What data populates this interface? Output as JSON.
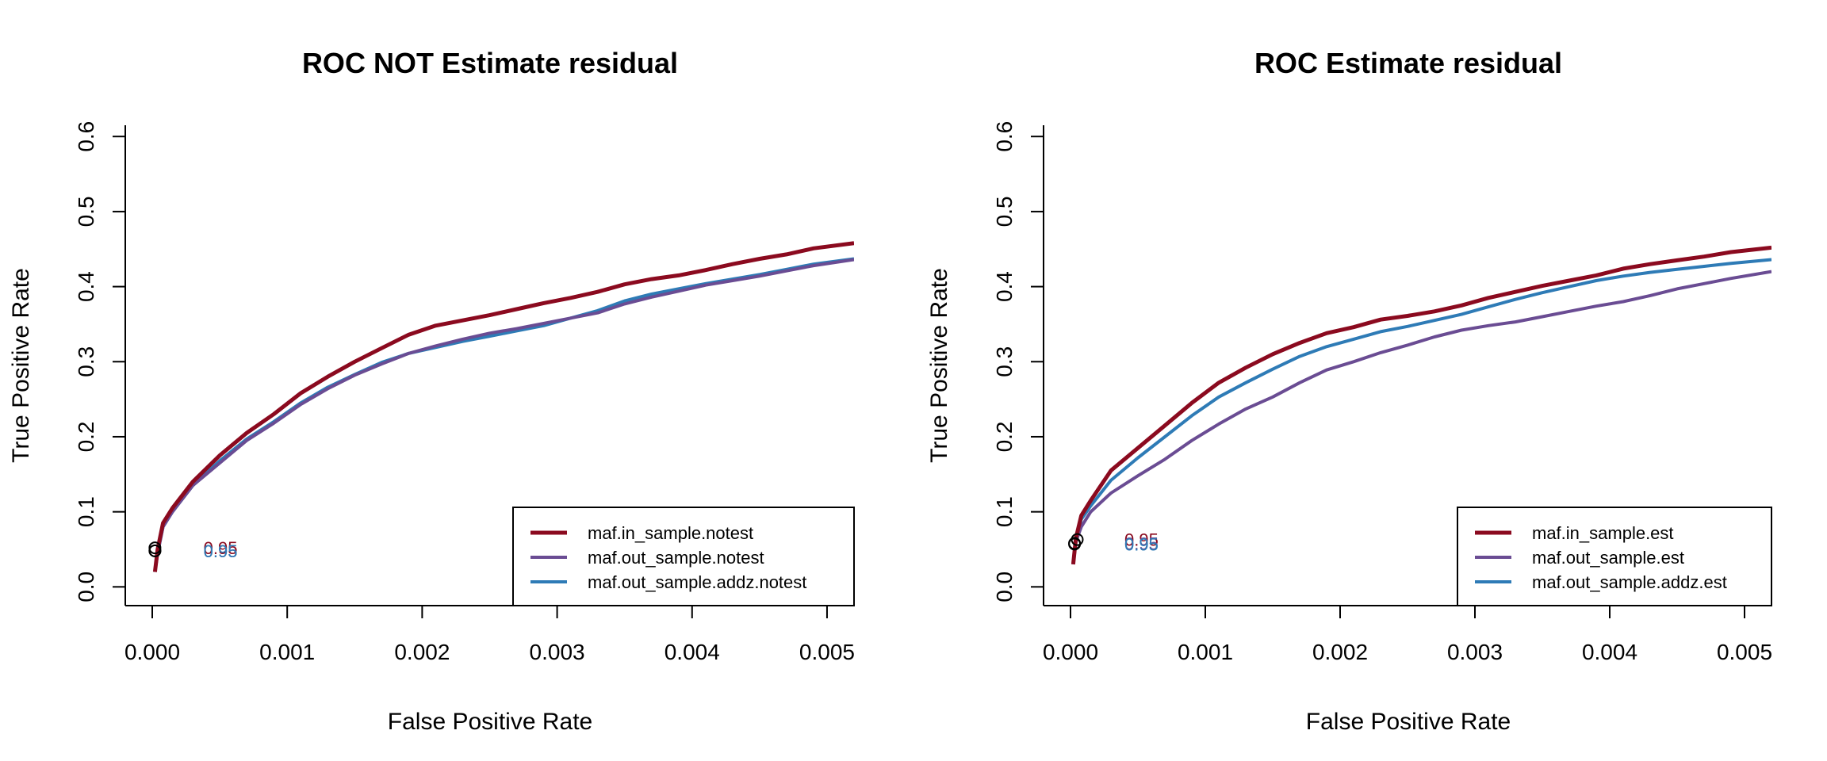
{
  "colors": {
    "in_sample": "#8B0A1F",
    "out_sample": "#6A4C93",
    "out_sample_addz": "#2E7BB6",
    "axis": "#000000",
    "marker": "#000000"
  },
  "chart_data": [
    {
      "type": "line",
      "title": "ROC NOT Estimate residual",
      "xlabel": "False Positive Rate",
      "ylabel": "True Positive Rate",
      "xlim": [
        0,
        0.0052
      ],
      "ylim": [
        -0.025,
        0.615
      ],
      "xticks": [
        0.0,
        0.001,
        0.002,
        0.003,
        0.004,
        0.005
      ],
      "xtick_labels": [
        "0.000",
        "0.001",
        "0.002",
        "0.003",
        "0.004",
        "0.005"
      ],
      "yticks": [
        0.0,
        0.1,
        0.2,
        0.3,
        0.4,
        0.5,
        0.6
      ],
      "ytick_labels": [
        "0.0",
        "0.1",
        "0.2",
        "0.3",
        "0.4",
        "0.5",
        "0.6"
      ],
      "legend_position": "bottom-right",
      "series": [
        {
          "name": "maf.in_sample.notest",
          "color_key": "in_sample",
          "width": 5,
          "x": [
            2e-05,
            4e-05,
            8e-05,
            0.00015,
            0.0003,
            0.0005,
            0.0007,
            0.0009,
            0.0011,
            0.0013,
            0.0015,
            0.0017,
            0.0019,
            0.0021,
            0.0023,
            0.0025,
            0.0027,
            0.0029,
            0.0031,
            0.0033,
            0.0035,
            0.0037,
            0.0039,
            0.0041,
            0.0043,
            0.0045,
            0.0047,
            0.0049,
            0.0052
          ],
          "y": [
            0.02,
            0.05,
            0.085,
            0.105,
            0.14,
            0.175,
            0.205,
            0.23,
            0.258,
            0.28,
            0.3,
            0.318,
            0.336,
            0.348,
            0.355,
            0.362,
            0.37,
            0.378,
            0.385,
            0.393,
            0.403,
            0.41,
            0.415,
            0.422,
            0.43,
            0.437,
            0.443,
            0.451,
            0.458
          ]
        },
        {
          "name": "maf.out_sample.notest",
          "color_key": "out_sample",
          "width": 4,
          "x": [
            2e-05,
            4e-05,
            8e-05,
            0.00015,
            0.0003,
            0.0005,
            0.0007,
            0.0009,
            0.0011,
            0.0013,
            0.0015,
            0.0017,
            0.0019,
            0.0021,
            0.0023,
            0.0025,
            0.0027,
            0.0029,
            0.0031,
            0.0033,
            0.0035,
            0.0037,
            0.0039,
            0.0041,
            0.0043,
            0.0045,
            0.0047,
            0.0049,
            0.0052
          ],
          "y": [
            0.02,
            0.045,
            0.08,
            0.1,
            0.135,
            0.165,
            0.195,
            0.218,
            0.243,
            0.264,
            0.282,
            0.297,
            0.311,
            0.321,
            0.33,
            0.338,
            0.344,
            0.351,
            0.358,
            0.365,
            0.377,
            0.386,
            0.394,
            0.402,
            0.408,
            0.414,
            0.421,
            0.428,
            0.436
          ]
        },
        {
          "name": "maf.out_sample.addz.notest",
          "color_key": "out_sample_addz",
          "width": 4,
          "x": [
            2e-05,
            4e-05,
            8e-05,
            0.00015,
            0.0003,
            0.0005,
            0.0007,
            0.0009,
            0.0011,
            0.0013,
            0.0015,
            0.0017,
            0.0019,
            0.0021,
            0.0023,
            0.0025,
            0.0027,
            0.0029,
            0.0031,
            0.0033,
            0.0035,
            0.0037,
            0.0039,
            0.0041,
            0.0043,
            0.0045,
            0.0047,
            0.0049,
            0.0052
          ],
          "y": [
            0.02,
            0.045,
            0.08,
            0.1,
            0.135,
            0.168,
            0.197,
            0.22,
            0.245,
            0.266,
            0.283,
            0.299,
            0.311,
            0.319,
            0.327,
            0.334,
            0.341,
            0.348,
            0.358,
            0.368,
            0.381,
            0.39,
            0.397,
            0.404,
            0.41,
            0.416,
            0.423,
            0.43,
            0.437
          ]
        }
      ],
      "cutoff_points": [
        {
          "x": 2e-05,
          "y": 0.052,
          "label": "0.95",
          "color_key": "in_sample"
        },
        {
          "x": 2e-05,
          "y": 0.048,
          "label": "0.95",
          "color_key": "out_sample"
        },
        {
          "x": 2e-05,
          "y": 0.048,
          "label": "0.95",
          "color_key": "out_sample_addz"
        }
      ],
      "cutoff_label_x": 0.00038
    },
    {
      "type": "line",
      "title": "ROC Estimate residual",
      "xlabel": "False Positive Rate",
      "ylabel": "True Positive Rate",
      "xlim": [
        0,
        0.0052
      ],
      "ylim": [
        -0.025,
        0.615
      ],
      "xticks": [
        0.0,
        0.001,
        0.002,
        0.003,
        0.004,
        0.005
      ],
      "xtick_labels": [
        "0.000",
        "0.001",
        "0.002",
        "0.003",
        "0.004",
        "0.005"
      ],
      "yticks": [
        0.0,
        0.1,
        0.2,
        0.3,
        0.4,
        0.5,
        0.6
      ],
      "ytick_labels": [
        "0.0",
        "0.1",
        "0.2",
        "0.3",
        "0.4",
        "0.5",
        "0.6"
      ],
      "legend_position": "bottom-right",
      "series": [
        {
          "name": "maf.in_sample.est",
          "color_key": "in_sample",
          "width": 5,
          "x": [
            2e-05,
            4e-05,
            8e-05,
            0.00015,
            0.0003,
            0.0005,
            0.0007,
            0.0009,
            0.0011,
            0.0013,
            0.0015,
            0.0017,
            0.0019,
            0.0021,
            0.0023,
            0.0025,
            0.0027,
            0.0029,
            0.0031,
            0.0033,
            0.0035,
            0.0037,
            0.0039,
            0.0041,
            0.0043,
            0.0045,
            0.0047,
            0.0049,
            0.0052
          ],
          "y": [
            0.03,
            0.065,
            0.095,
            0.115,
            0.155,
            0.185,
            0.215,
            0.245,
            0.272,
            0.292,
            0.31,
            0.325,
            0.338,
            0.346,
            0.356,
            0.361,
            0.367,
            0.375,
            0.385,
            0.393,
            0.401,
            0.408,
            0.415,
            0.424,
            0.43,
            0.435,
            0.44,
            0.446,
            0.452
          ]
        },
        {
          "name": "maf.out_sample.est",
          "color_key": "out_sample",
          "width": 4,
          "x": [
            2e-05,
            4e-05,
            8e-05,
            0.00015,
            0.0003,
            0.0005,
            0.0007,
            0.0009,
            0.0011,
            0.0013,
            0.0015,
            0.0017,
            0.0019,
            0.0021,
            0.0023,
            0.0025,
            0.0027,
            0.0029,
            0.0031,
            0.0033,
            0.0035,
            0.0037,
            0.0039,
            0.0041,
            0.0043,
            0.0045,
            0.0047,
            0.0049,
            0.0052
          ],
          "y": [
            0.03,
            0.06,
            0.08,
            0.1,
            0.125,
            0.148,
            0.17,
            0.195,
            0.217,
            0.237,
            0.253,
            0.272,
            0.289,
            0.3,
            0.312,
            0.322,
            0.333,
            0.342,
            0.348,
            0.353,
            0.36,
            0.367,
            0.374,
            0.38,
            0.388,
            0.397,
            0.404,
            0.411,
            0.42
          ]
        },
        {
          "name": "maf.out_sample.addz.est",
          "color_key": "out_sample_addz",
          "width": 4,
          "x": [
            2e-05,
            4e-05,
            8e-05,
            0.00015,
            0.0003,
            0.0005,
            0.0007,
            0.0009,
            0.0011,
            0.0013,
            0.0015,
            0.0017,
            0.0019,
            0.0021,
            0.0023,
            0.0025,
            0.0027,
            0.0029,
            0.0031,
            0.0033,
            0.0035,
            0.0037,
            0.0039,
            0.0041,
            0.0043,
            0.0045,
            0.0047,
            0.0049,
            0.0052
          ],
          "y": [
            0.03,
            0.06,
            0.09,
            0.108,
            0.142,
            0.172,
            0.2,
            0.228,
            0.253,
            0.272,
            0.29,
            0.307,
            0.32,
            0.33,
            0.34,
            0.347,
            0.355,
            0.363,
            0.373,
            0.383,
            0.392,
            0.4,
            0.408,
            0.414,
            0.419,
            0.423,
            0.427,
            0.431,
            0.436
          ]
        }
      ],
      "cutoff_points": [
        {
          "x": 5e-05,
          "y": 0.063,
          "label": "0.95",
          "color_key": "in_sample"
        },
        {
          "x": 3e-05,
          "y": 0.058,
          "label": "0.95",
          "color_key": "out_sample"
        },
        {
          "x": 3e-05,
          "y": 0.057,
          "label": "0.95",
          "color_key": "out_sample_addz"
        }
      ],
      "cutoff_label_x": 0.0004
    }
  ]
}
